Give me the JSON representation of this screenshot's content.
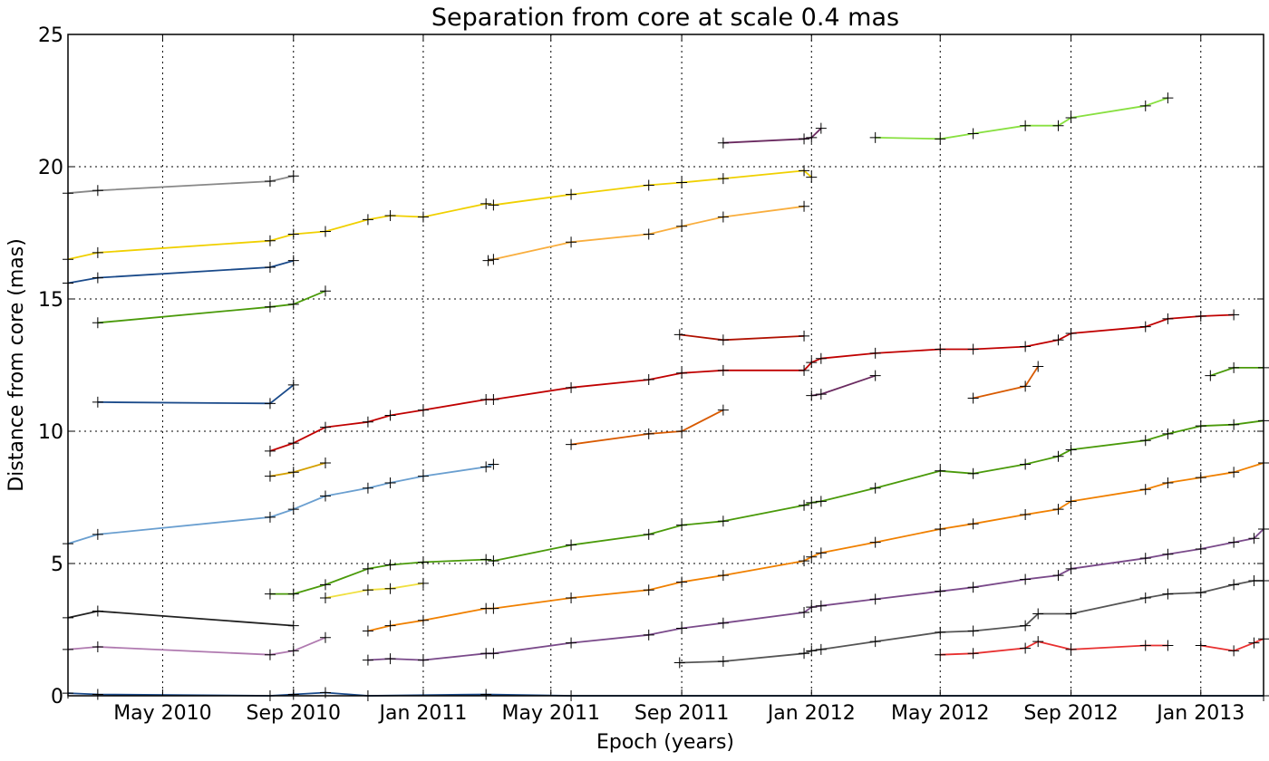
{
  "chart_data": {
    "type": "line",
    "title": "Separation from core at scale 0.4 mas",
    "xlabel": "Epoch (years)",
    "ylabel": "Distance from core (mas)",
    "xlim": [
      "2010-02-01",
      "2013-03-01"
    ],
    "ylim": [
      0,
      25
    ],
    "x_ticks": [
      {
        "date": "2010-05-01",
        "label": "May 2010"
      },
      {
        "date": "2010-09-01",
        "label": "Sep 2010"
      },
      {
        "date": "2011-01-01",
        "label": "Jan 2011"
      },
      {
        "date": "2011-05-01",
        "label": "May 2011"
      },
      {
        "date": "2011-09-01",
        "label": "Sep 2011"
      },
      {
        "date": "2012-01-01",
        "label": "Jan 2012"
      },
      {
        "date": "2012-05-01",
        "label": "May 2012"
      },
      {
        "date": "2012-09-01",
        "label": "Sep 2012"
      },
      {
        "date": "2013-01-01",
        "label": "Jan 2013"
      }
    ],
    "y_ticks": [
      0,
      5,
      10,
      15,
      20,
      25
    ],
    "grid": true,
    "marker": "+",
    "series": [
      {
        "color": "#888888",
        "points": [
          [
            "2010-02-01",
            19.0
          ],
          [
            "2010-03-01",
            19.1
          ],
          [
            "2010-08-10",
            19.45
          ],
          [
            "2010-09-01",
            19.65
          ]
        ]
      },
      {
        "color": "#f0d000",
        "points": [
          [
            "2010-02-01",
            16.5
          ],
          [
            "2010-03-01",
            16.75
          ],
          [
            "2010-08-10",
            17.2
          ],
          [
            "2010-09-01",
            17.45
          ],
          [
            "2010-10-01",
            17.55
          ],
          [
            "2010-11-10",
            18.0
          ],
          [
            "2010-12-01",
            18.15
          ],
          [
            "2011-01-01",
            18.1
          ],
          [
            "2011-03-01",
            18.6
          ],
          [
            "2011-03-08",
            18.55
          ],
          [
            "2011-05-20",
            18.95
          ],
          [
            "2011-08-01",
            19.3
          ],
          [
            "2011-09-01",
            19.4
          ],
          [
            "2011-10-10",
            19.55
          ],
          [
            "2011-12-25",
            19.85
          ],
          [
            "2012-01-01",
            19.6
          ]
        ]
      },
      {
        "color": "#f9ae3e",
        "points": [
          [
            "2011-03-03",
            16.45
          ],
          [
            "2011-03-08",
            16.5
          ],
          [
            "2011-05-20",
            17.15
          ],
          [
            "2011-08-01",
            17.45
          ],
          [
            "2011-09-01",
            17.75
          ],
          [
            "2011-10-10",
            18.1
          ],
          [
            "2011-12-25",
            18.5
          ]
        ]
      },
      {
        "color": "#1a4a8a",
        "points": [
          [
            "2010-02-01",
            15.6
          ],
          [
            "2010-03-01",
            15.8
          ],
          [
            "2010-08-10",
            16.2
          ],
          [
            "2010-09-01",
            16.45
          ]
        ]
      },
      {
        "color": "#4a9a0a",
        "points": [
          [
            "2010-03-01",
            14.1
          ],
          [
            "2010-08-10",
            14.7
          ],
          [
            "2010-09-01",
            14.8
          ],
          [
            "2010-10-01",
            15.3
          ]
        ]
      },
      {
        "color": "#1a4a8a",
        "points": [
          [
            "2010-03-01",
            11.1
          ],
          [
            "2010-08-10",
            11.05
          ],
          [
            "2010-09-01",
            11.75
          ]
        ]
      },
      {
        "color": "#c00000",
        "points": [
          [
            "2010-08-10",
            9.25
          ],
          [
            "2010-09-01",
            9.55
          ],
          [
            "2010-10-01",
            10.15
          ],
          [
            "2010-11-10",
            10.35
          ],
          [
            "2010-12-01",
            10.6
          ],
          [
            "2011-01-01",
            10.8
          ],
          [
            "2011-03-01",
            11.2
          ],
          [
            "2011-03-08",
            11.2
          ],
          [
            "2011-05-20",
            11.65
          ],
          [
            "2011-08-01",
            11.95
          ],
          [
            "2011-09-01",
            12.2
          ],
          [
            "2011-10-10",
            12.3
          ],
          [
            "2011-12-25",
            12.3
          ],
          [
            "2012-01-01",
            12.6
          ],
          [
            "2012-01-10",
            12.75
          ],
          [
            "2012-03-01",
            12.95
          ],
          [
            "2012-05-01",
            13.1
          ],
          [
            "2012-06-01",
            13.1
          ],
          [
            "2012-07-20",
            13.2
          ],
          [
            "2012-08-20",
            13.45
          ],
          [
            "2012-09-01",
            13.7
          ],
          [
            "2012-11-10",
            13.95
          ],
          [
            "2012-12-01",
            14.25
          ],
          [
            "2013-01-01",
            14.35
          ],
          [
            "2013-02-01",
            14.4
          ]
        ]
      },
      {
        "color": "#b01000",
        "points": [
          [
            "2011-08-30",
            13.65
          ],
          [
            "2011-10-10",
            13.45
          ],
          [
            "2011-12-25",
            13.6
          ]
        ]
      },
      {
        "color": "#d4a000",
        "points": [
          [
            "2010-08-10",
            8.3
          ],
          [
            "2010-09-01",
            8.45
          ],
          [
            "2010-10-01",
            8.8
          ]
        ]
      },
      {
        "color": "#6a9fd0",
        "points": [
          [
            "2010-02-01",
            5.75
          ],
          [
            "2010-03-01",
            6.1
          ],
          [
            "2010-08-10",
            6.75
          ],
          [
            "2010-09-01",
            7.05
          ],
          [
            "2010-10-01",
            7.55
          ],
          [
            "2010-11-10",
            7.85
          ],
          [
            "2010-12-01",
            8.05
          ],
          [
            "2011-01-01",
            8.3
          ],
          [
            "2011-03-01",
            8.65
          ],
          [
            "2011-03-08",
            8.75
          ]
        ]
      },
      {
        "color": "#d85a00",
        "points": [
          [
            "2011-05-20",
            9.5
          ],
          [
            "2011-08-01",
            9.9
          ],
          [
            "2011-09-01",
            10.0
          ],
          [
            "2011-10-10",
            10.8
          ]
        ]
      },
      {
        "color": "#d85a00",
        "points": [
          [
            "2012-06-01",
            11.25
          ],
          [
            "2012-07-20",
            11.7
          ],
          [
            "2012-08-01",
            12.45
          ]
        ]
      },
      {
        "color": "#6a2a60",
        "points": [
          [
            "2011-10-10",
            20.9
          ],
          [
            "2011-12-25",
            21.05
          ],
          [
            "2012-01-01",
            21.1
          ],
          [
            "2012-01-10",
            21.45
          ]
        ]
      },
      {
        "color": "#88e040",
        "points": [
          [
            "2012-03-01",
            21.1
          ],
          [
            "2012-05-01",
            21.05
          ],
          [
            "2012-06-01",
            21.25
          ],
          [
            "2012-07-20",
            21.55
          ],
          [
            "2012-08-20",
            21.55
          ],
          [
            "2012-09-01",
            21.85
          ],
          [
            "2012-11-10",
            22.3
          ],
          [
            "2012-12-01",
            22.6
          ]
        ]
      },
      {
        "color": "#6a2a60",
        "points": [
          [
            "2012-01-01",
            11.35
          ],
          [
            "2012-01-10",
            11.4
          ],
          [
            "2012-03-01",
            12.1
          ]
        ]
      },
      {
        "color": "#4a9a0a",
        "points": [
          [
            "2013-01-10",
            12.1
          ],
          [
            "2013-02-01",
            12.4
          ],
          [
            "2013-03-01",
            12.4
          ]
        ]
      },
      {
        "color": "#4a9a0a",
        "points": [
          [
            "2010-08-10",
            3.85
          ],
          [
            "2010-09-01",
            3.85
          ],
          [
            "2010-10-01",
            4.2
          ],
          [
            "2010-11-10",
            4.8
          ],
          [
            "2010-12-01",
            4.95
          ],
          [
            "2011-01-01",
            5.05
          ],
          [
            "2011-03-01",
            5.15
          ],
          [
            "2011-03-08",
            5.1
          ],
          [
            "2011-05-20",
            5.7
          ],
          [
            "2011-08-01",
            6.1
          ],
          [
            "2011-09-01",
            6.45
          ],
          [
            "2011-10-10",
            6.6
          ],
          [
            "2011-12-25",
            7.2
          ],
          [
            "2012-01-01",
            7.3
          ],
          [
            "2012-01-10",
            7.35
          ],
          [
            "2012-03-01",
            7.85
          ],
          [
            "2012-05-01",
            8.5
          ],
          [
            "2012-06-01",
            8.4
          ],
          [
            "2012-07-20",
            8.75
          ],
          [
            "2012-08-20",
            9.05
          ],
          [
            "2012-09-01",
            9.3
          ],
          [
            "2012-11-10",
            9.65
          ],
          [
            "2012-12-01",
            9.9
          ],
          [
            "2013-01-01",
            10.2
          ],
          [
            "2013-02-01",
            10.25
          ],
          [
            "2013-03-01",
            10.4
          ]
        ]
      },
      {
        "color": "#f08000",
        "points": [
          [
            "2010-11-10",
            2.45
          ],
          [
            "2010-12-01",
            2.65
          ],
          [
            "2011-01-01",
            2.85
          ],
          [
            "2011-03-01",
            3.3
          ],
          [
            "2011-03-08",
            3.3
          ],
          [
            "2011-05-20",
            3.7
          ],
          [
            "2011-08-01",
            4.0
          ],
          [
            "2011-09-01",
            4.3
          ],
          [
            "2011-10-10",
            4.55
          ],
          [
            "2011-12-25",
            5.1
          ],
          [
            "2012-01-01",
            5.25
          ],
          [
            "2012-01-10",
            5.4
          ],
          [
            "2012-03-01",
            5.8
          ],
          [
            "2012-05-01",
            6.3
          ],
          [
            "2012-06-01",
            6.5
          ],
          [
            "2012-07-20",
            6.85
          ],
          [
            "2012-08-20",
            7.05
          ],
          [
            "2012-09-01",
            7.35
          ],
          [
            "2012-11-10",
            7.8
          ],
          [
            "2012-12-01",
            8.05
          ],
          [
            "2013-01-01",
            8.25
          ],
          [
            "2013-02-01",
            8.45
          ],
          [
            "2013-03-01",
            8.8
          ]
        ]
      },
      {
        "color": "#f0e040",
        "points": [
          [
            "2010-10-01",
            3.7
          ],
          [
            "2010-11-10",
            4.0
          ],
          [
            "2010-12-01",
            4.05
          ],
          [
            "2011-01-01",
            4.25
          ]
        ]
      },
      {
        "color": "#222222",
        "points": [
          [
            "2010-02-01",
            2.95
          ],
          [
            "2010-03-01",
            3.2
          ],
          [
            "2010-09-01",
            2.65
          ]
        ]
      },
      {
        "color": "#b07ab0",
        "points": [
          [
            "2010-02-01",
            1.75
          ],
          [
            "2010-03-01",
            1.85
          ],
          [
            "2010-08-10",
            1.55
          ],
          [
            "2010-09-01",
            1.7
          ],
          [
            "2010-10-01",
            2.2
          ]
        ]
      },
      {
        "color": "#7a4a8a",
        "points": [
          [
            "2010-11-10",
            1.35
          ],
          [
            "2010-12-01",
            1.4
          ],
          [
            "2011-01-01",
            1.35
          ],
          [
            "2011-03-01",
            1.6
          ],
          [
            "2011-03-08",
            1.6
          ],
          [
            "2011-05-20",
            2.0
          ],
          [
            "2011-08-01",
            2.3
          ],
          [
            "2011-09-01",
            2.55
          ],
          [
            "2011-10-10",
            2.75
          ],
          [
            "2011-12-25",
            3.15
          ],
          [
            "2012-01-01",
            3.35
          ],
          [
            "2012-01-10",
            3.4
          ],
          [
            "2012-03-01",
            3.65
          ],
          [
            "2012-05-01",
            3.95
          ],
          [
            "2012-06-01",
            4.1
          ],
          [
            "2012-07-20",
            4.4
          ],
          [
            "2012-08-20",
            4.55
          ],
          [
            "2012-09-01",
            4.8
          ],
          [
            "2012-11-10",
            5.2
          ],
          [
            "2012-12-01",
            5.35
          ],
          [
            "2013-01-01",
            5.55
          ],
          [
            "2013-02-01",
            5.8
          ],
          [
            "2013-02-20",
            5.95
          ],
          [
            "2013-03-01",
            6.3
          ]
        ]
      },
      {
        "color": "#555555",
        "points": [
          [
            "2011-08-30",
            1.25
          ],
          [
            "2011-10-10",
            1.3
          ],
          [
            "2011-12-25",
            1.6
          ],
          [
            "2012-01-01",
            1.7
          ],
          [
            "2012-01-10",
            1.75
          ],
          [
            "2012-03-01",
            2.05
          ],
          [
            "2012-05-01",
            2.4
          ],
          [
            "2012-06-01",
            2.45
          ],
          [
            "2012-07-20",
            2.65
          ],
          [
            "2012-08-01",
            3.1
          ],
          [
            "2012-09-01",
            3.1
          ],
          [
            "2012-11-10",
            3.7
          ],
          [
            "2012-12-01",
            3.85
          ],
          [
            "2013-01-01",
            3.9
          ],
          [
            "2013-02-01",
            4.2
          ],
          [
            "2013-02-20",
            4.35
          ],
          [
            "2013-03-01",
            4.35
          ]
        ]
      },
      {
        "color": "#e83030",
        "points": [
          [
            "2012-05-01",
            1.55
          ],
          [
            "2012-06-01",
            1.6
          ],
          [
            "2012-07-20",
            1.8
          ],
          [
            "2012-08-01",
            2.05
          ],
          [
            "2012-09-01",
            1.75
          ],
          [
            "2012-11-10",
            1.9
          ],
          [
            "2012-12-01",
            1.9
          ]
        ]
      },
      {
        "color": "#e83030",
        "points": [
          [
            "2013-01-01",
            1.9
          ],
          [
            "2013-02-01",
            1.7
          ],
          [
            "2013-02-20",
            2.0
          ],
          [
            "2013-03-01",
            2.15
          ]
        ]
      },
      {
        "color": "#1a4a8a",
        "points": [
          [
            "2010-02-01",
            0.1
          ],
          [
            "2010-03-01",
            0.05
          ],
          [
            "2010-08-10",
            0.0
          ],
          [
            "2010-09-01",
            0.05
          ],
          [
            "2010-10-01",
            0.12
          ],
          [
            "2010-11-10",
            0.0
          ],
          [
            "2011-03-01",
            0.05
          ],
          [
            "2011-05-20",
            0.0
          ],
          [
            "2013-03-01",
            0.0
          ]
        ]
      }
    ]
  }
}
